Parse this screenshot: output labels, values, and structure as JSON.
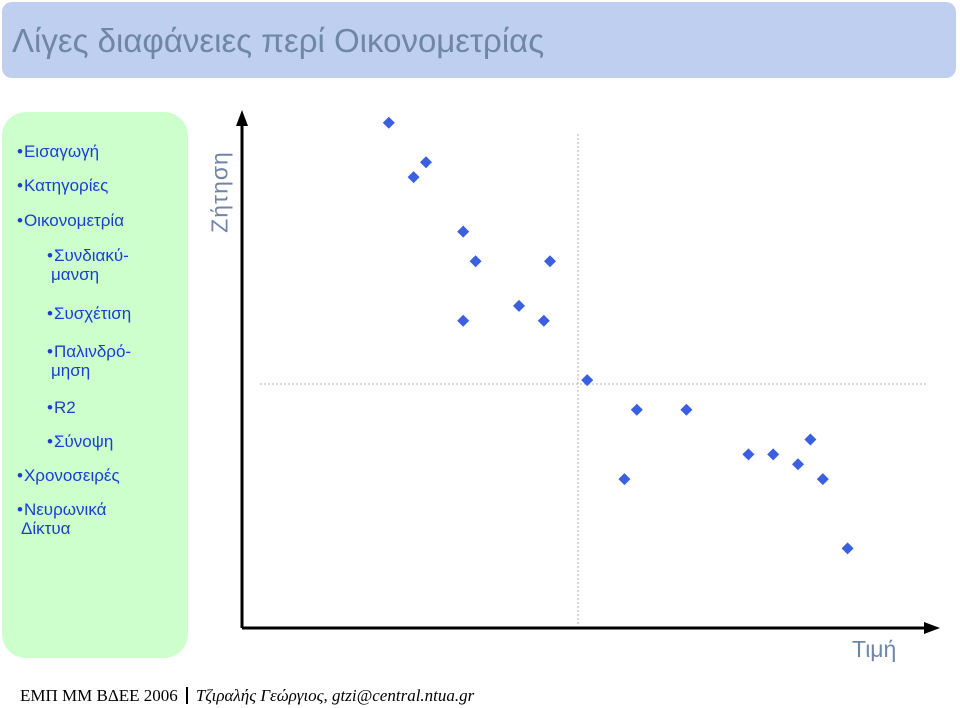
{
  "title": "Λίγες διαφάνειες περί Οικονομετρίας",
  "nav": [
    {
      "label": "Εισαγωγή",
      "level": 1
    },
    {
      "label": "Κατηγορίες",
      "level": 1
    },
    {
      "label": "Οικονομετρία",
      "level": 1
    },
    {
      "label": "Συνδιακύ-",
      "label2": "μανση",
      "level": 2
    },
    {
      "label": "Συσχέτιση",
      "level": 2
    },
    {
      "label": "Παλινδρό-",
      "label2": "μηση",
      "level": 2
    },
    {
      "label": "R2",
      "level": 2
    },
    {
      "label": "Σύνοψη",
      "level": 2
    },
    {
      "label": "Χρονοσειρές",
      "level": 1
    },
    {
      "label": "Νευρωνικά",
      "label2": "Δίκτυα",
      "level": 1
    }
  ],
  "chart_data": {
    "type": "scatter",
    "xlabel": "Τιμή",
    "ylabel": "Ζήτηση",
    "xlim": [
      0,
      100
    ],
    "ylim": [
      0,
      100
    ],
    "mean_lines": {
      "x": 50,
      "y": 50
    },
    "points": [
      {
        "x": 14,
        "y": 94
      },
      {
        "x": 18,
        "y": 83
      },
      {
        "x": 20,
        "y": 86
      },
      {
        "x": 26,
        "y": 72
      },
      {
        "x": 28,
        "y": 66
      },
      {
        "x": 26,
        "y": 54
      },
      {
        "x": 35,
        "y": 57
      },
      {
        "x": 39,
        "y": 54
      },
      {
        "x": 40,
        "y": 66
      },
      {
        "x": 46,
        "y": 42
      },
      {
        "x": 54,
        "y": 36
      },
      {
        "x": 52,
        "y": 22
      },
      {
        "x": 62,
        "y": 36
      },
      {
        "x": 72,
        "y": 27
      },
      {
        "x": 76,
        "y": 27
      },
      {
        "x": 80,
        "y": 25
      },
      {
        "x": 84,
        "y": 22
      },
      {
        "x": 82,
        "y": 30
      },
      {
        "x": 88,
        "y": 8
      }
    ],
    "marker_color": "#3a5fe0"
  },
  "footer": {
    "left": "ΕΜΠ ΜΜ ΒΔΕΕ 2006",
    "right": "Τζιραλής Γεώργιος, gtzi@central.ntua.gr"
  }
}
